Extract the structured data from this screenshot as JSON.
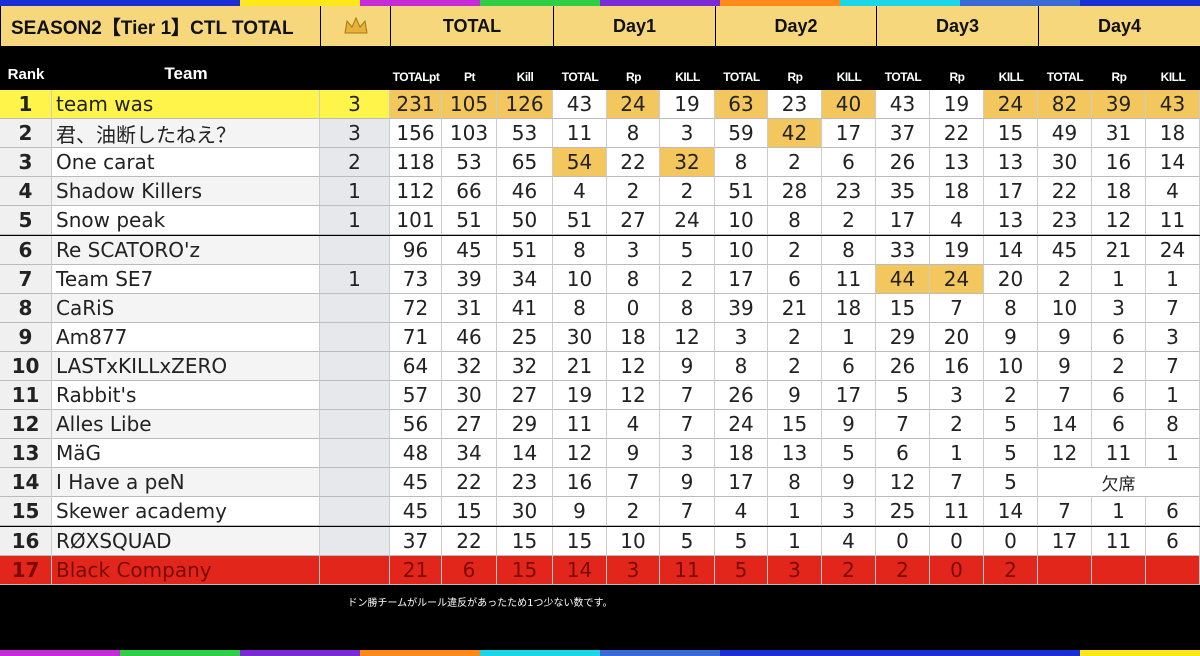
{
  "header": {
    "title": "SEASON2【Tier 1】CTL TOTAL",
    "groups": [
      "TOTAL",
      "Day1",
      "Day2",
      "Day3",
      "Day4"
    ],
    "rank_label": "Rank",
    "team_label": "Team",
    "columns": [
      "TOTALpt",
      "Pt",
      "Kill",
      "TOTAL",
      "Rp",
      "KILL",
      "TOTAL",
      "Rp",
      "KILL",
      "TOTAL",
      "Rp",
      "KILL",
      "TOTAL",
      "Rp",
      "KILL"
    ]
  },
  "rows": [
    {
      "rank": 1,
      "team": "team was",
      "wins": 3,
      "total": [
        231,
        105,
        126
      ],
      "days": [
        [
          43,
          24,
          19
        ],
        [
          63,
          23,
          40
        ],
        [
          43,
          19,
          24
        ],
        [
          82,
          39,
          43
        ]
      ]
    },
    {
      "rank": 2,
      "team": "君、油断したねえ？",
      "wins": 3,
      "total": [
        156,
        103,
        53
      ],
      "days": [
        [
          11,
          8,
          3
        ],
        [
          59,
          42,
          17
        ],
        [
          37,
          22,
          15
        ],
        [
          49,
          31,
          18
        ]
      ]
    },
    {
      "rank": 3,
      "team": "One carat",
      "wins": 2,
      "total": [
        118,
        53,
        65
      ],
      "days": [
        [
          54,
          22,
          32
        ],
        [
          8,
          2,
          6
        ],
        [
          26,
          13,
          13
        ],
        [
          30,
          16,
          14
        ]
      ]
    },
    {
      "rank": 4,
      "team": "Shadow Killers",
      "wins": 1,
      "total": [
        112,
        66,
        46
      ],
      "days": [
        [
          4,
          2,
          2
        ],
        [
          51,
          28,
          23
        ],
        [
          35,
          18,
          17
        ],
        [
          22,
          18,
          4
        ]
      ]
    },
    {
      "rank": 5,
      "team": "Snow peak",
      "wins": 1,
      "total": [
        101,
        51,
        50
      ],
      "days": [
        [
          51,
          27,
          24
        ],
        [
          10,
          8,
          2
        ],
        [
          17,
          4,
          13
        ],
        [
          23,
          12,
          11
        ]
      ]
    },
    {
      "rank": 6,
      "team": "Re SCATORO'z",
      "total": [
        96,
        45,
        51
      ],
      "days": [
        [
          8,
          3,
          5
        ],
        [
          10,
          2,
          8
        ],
        [
          33,
          19,
          14
        ],
        [
          45,
          21,
          24
        ]
      ]
    },
    {
      "rank": 7,
      "team": "Team SE7",
      "wins": 1,
      "total": [
        73,
        39,
        34
      ],
      "days": [
        [
          10,
          8,
          2
        ],
        [
          17,
          6,
          11
        ],
        [
          44,
          24,
          20
        ],
        [
          2,
          1,
          1
        ]
      ]
    },
    {
      "rank": 8,
      "team": "CaRiS",
      "total": [
        72,
        31,
        41
      ],
      "days": [
        [
          8,
          0,
          8
        ],
        [
          39,
          21,
          18
        ],
        [
          15,
          7,
          8
        ],
        [
          10,
          3,
          7
        ]
      ]
    },
    {
      "rank": 9,
      "team": "Am877",
      "total": [
        71,
        46,
        25
      ],
      "days": [
        [
          30,
          18,
          12
        ],
        [
          3,
          2,
          1
        ],
        [
          29,
          20,
          9
        ],
        [
          9,
          6,
          3
        ]
      ]
    },
    {
      "rank": 10,
      "team": "LASTxKILLxZERO",
      "total": [
        64,
        32,
        32
      ],
      "days": [
        [
          21,
          12,
          9
        ],
        [
          8,
          2,
          6
        ],
        [
          26,
          16,
          10
        ],
        [
          9,
          2,
          7
        ]
      ]
    },
    {
      "rank": 11,
      "team": "Rabbit's",
      "total": [
        57,
        30,
        27
      ],
      "days": [
        [
          19,
          12,
          7
        ],
        [
          26,
          9,
          17
        ],
        [
          5,
          3,
          2
        ],
        [
          7,
          6,
          1
        ]
      ]
    },
    {
      "rank": 12,
      "team": "Alles Libe",
      "total": [
        56,
        27,
        29
      ],
      "days": [
        [
          11,
          4,
          7
        ],
        [
          24,
          15,
          9
        ],
        [
          7,
          2,
          5
        ],
        [
          14,
          6,
          8
        ]
      ]
    },
    {
      "rank": 13,
      "team": "MäG",
      "total": [
        48,
        34,
        14
      ],
      "days": [
        [
          12,
          9,
          3
        ],
        [
          18,
          13,
          5
        ],
        [
          6,
          1,
          5
        ],
        [
          12,
          11,
          1
        ]
      ]
    },
    {
      "rank": 14,
      "team": "I Have a peN",
      "total": [
        45,
        22,
        23
      ],
      "days": [
        [
          16,
          7,
          9
        ],
        [
          17,
          8,
          9
        ],
        [
          12,
          7,
          5
        ],
        "欠席"
      ]
    },
    {
      "rank": 15,
      "team": "Skewer academy",
      "total": [
        45,
        15,
        30
      ],
      "days": [
        [
          9,
          2,
          7
        ],
        [
          4,
          1,
          3
        ],
        [
          25,
          11,
          14
        ],
        [
          7,
          1,
          6
        ]
      ]
    },
    {
      "rank": 16,
      "team": "RØXSQUAD",
      "total": [
        37,
        22,
        15
      ],
      "days": [
        [
          15,
          10,
          5
        ],
        [
          5,
          1,
          4
        ],
        [
          0,
          0,
          0
        ],
        [
          17,
          11,
          6
        ]
      ]
    },
    {
      "rank": 17,
      "team": "Black Company",
      "total": [
        21,
        6,
        15
      ],
      "days": [
        [
          14,
          3,
          11
        ],
        [
          5,
          3,
          2
        ],
        [
          2,
          0,
          2
        ]
      ]
    }
  ],
  "note": "ドン勝チームがルール違反があったため1つ少ない数です。"
}
